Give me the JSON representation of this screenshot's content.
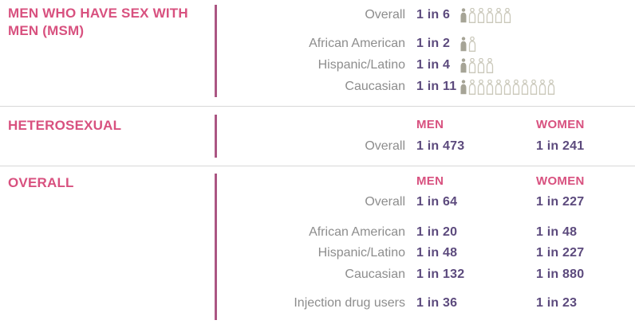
{
  "colors": {
    "pink": "#d8517f",
    "purple": "#5c4a7d",
    "graylabel": "#8d8d8d",
    "rule": "#d8d8d8",
    "vline": "#ab5683",
    "iconfill": "#a6a496",
    "iconline": "#cac8ba"
  },
  "sections": [
    {
      "title": "MEN WHO HAVE SEX WITH MEN (MSM)",
      "rows": [
        {
          "label": "Overall",
          "men": "1 in 6",
          "icons_total": 6,
          "icons_filled": 1
        },
        {
          "label": "African American",
          "men": "1 in 2",
          "icons_total": 2,
          "icons_filled": 1
        },
        {
          "label": "Hispanic/Latino",
          "men": "1 in 4",
          "icons_total": 4,
          "icons_filled": 1
        },
        {
          "label": "Caucasian",
          "men": "1 in 11",
          "icons_total": 11,
          "icons_filled": 1
        }
      ]
    },
    {
      "title": "HETEROSEXUAL",
      "columns": [
        "MEN",
        "WOMEN"
      ],
      "rows": [
        {
          "label": "Overall",
          "men": "1 in 473",
          "women": "1 in 241"
        }
      ]
    },
    {
      "title": "OVERALL",
      "columns": [
        "MEN",
        "WOMEN"
      ],
      "rows": [
        {
          "label": "Overall",
          "men": "1 in 64",
          "women": "1 in 227"
        },
        {
          "label": "African American",
          "men": "1 in 20",
          "women": "1 in 48"
        },
        {
          "label": "Hispanic/Latino",
          "men": "1 in 48",
          "women": "1 in 227"
        },
        {
          "label": "Caucasian",
          "men": "1 in 132",
          "women": "1 in 880"
        },
        {
          "label": "Injection drug users",
          "men": "1 in 36",
          "women": "1 in 23"
        }
      ]
    }
  ],
  "chart_data": [
    {
      "type": "pictograph",
      "title": "MEN WHO HAVE SEX WITH MEN (MSM)",
      "categories": [
        "Overall",
        "African American",
        "Hispanic/Latino",
        "Caucasian"
      ],
      "values": [
        "1 in 6",
        "1 in 2",
        "1 in 4",
        "1 in 11"
      ],
      "denominators": [
        6,
        2,
        4,
        11
      ],
      "icon_note": "person icons: 1 filled out of N total per row"
    },
    {
      "type": "table",
      "title": "HETEROSEXUAL",
      "columns": [
        "MEN",
        "WOMEN"
      ],
      "categories": [
        "Overall"
      ],
      "series": [
        {
          "name": "MEN",
          "values": [
            "1 in 473"
          ]
        },
        {
          "name": "WOMEN",
          "values": [
            "1 in 241"
          ]
        }
      ]
    },
    {
      "type": "table",
      "title": "OVERALL",
      "columns": [
        "MEN",
        "WOMEN"
      ],
      "categories": [
        "Overall",
        "African American",
        "Hispanic/Latino",
        "Caucasian",
        "Injection drug users"
      ],
      "series": [
        {
          "name": "MEN",
          "values": [
            "1 in 64",
            "1 in 20",
            "1 in 48",
            "1 in 132",
            "1 in 36"
          ]
        },
        {
          "name": "WOMEN",
          "values": [
            "1 in 227",
            "1 in 48",
            "1 in 227",
            "1 in 880",
            "1 in 23"
          ]
        }
      ]
    }
  ]
}
